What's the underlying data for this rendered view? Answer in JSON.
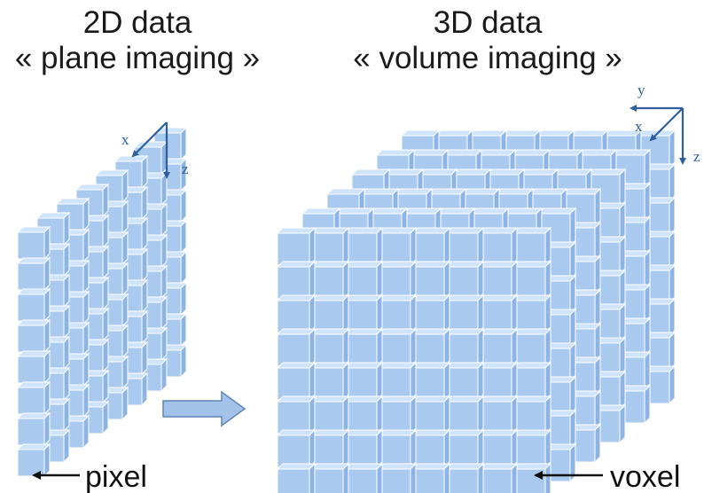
{
  "left_panel": {
    "title_line1": "2D data",
    "title_line2": "« plane imaging »",
    "axis_x": "x",
    "axis_z": "z",
    "element_label": "pixel",
    "grid_rows": 8,
    "grid_cols": 8
  },
  "right_panel": {
    "title_line1": "3D data",
    "title_line2": "« volume imaging »",
    "axis_x": "x",
    "axis_y": "y",
    "axis_z": "z",
    "element_label": "voxel",
    "grid_rows": 8,
    "grid_cols": 8,
    "grid_layers": 6
  },
  "colors": {
    "voxel_face": "#a9c9ef",
    "voxel_top": "#cfe3fa",
    "voxel_side": "#8db4e2",
    "axis": "#2e5e9c",
    "arrow_fill": "#a3c2ea"
  }
}
